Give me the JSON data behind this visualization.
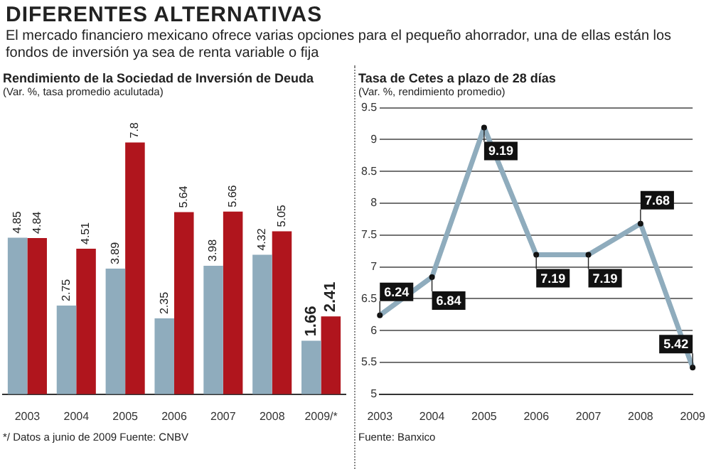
{
  "chart_data": [
    {
      "type": "other",
      "title": "DIFERENTES ALTERNATIVAS",
      "subtitle": "El mercado financiero mexicano ofrece varias opciones para el pequeño ahorrador, una de ellas están los fondos de inversión ya sea de renta variable o fija"
    },
    {
      "type": "bar",
      "title": "Rendimiento de la Sociedad de Inversión de Deuda",
      "subtitle": "(Var. %, tasa promedio aculutada)",
      "categories": [
        "2003",
        "2004",
        "2005",
        "2006",
        "2007",
        "2008",
        "2009/*"
      ],
      "series": [
        {
          "color": "#8facbd",
          "values": [
            4.85,
            2.75,
            3.89,
            2.35,
            3.98,
            4.32,
            1.66
          ]
        },
        {
          "color": "#b0151d",
          "values": [
            4.84,
            4.51,
            7.8,
            5.64,
            5.66,
            5.05,
            2.41
          ]
        }
      ],
      "data_labels": true,
      "annotations": [
        "*/ Datos a junio de 2009  Fuente: CNBV"
      ]
    },
    {
      "type": "line",
      "title": "Tasa de Cetes a plazo de 28 días",
      "subtitle": "(Var. %, rendimiento promedio)",
      "categories": [
        "2003",
        "2004",
        "2005",
        "2006",
        "2007",
        "2008",
        "2009"
      ],
      "series": [
        {
          "color": "#8facbd",
          "values": [
            6.24,
            6.84,
            9.19,
            7.19,
            7.19,
            7.68,
            5.42
          ]
        }
      ],
      "ylim": [
        5,
        9.5
      ],
      "yticks": [
        5,
        5.5,
        6,
        6.5,
        7,
        7.5,
        8,
        8.5,
        9,
        9.5
      ],
      "grid": "y",
      "marker": "circle",
      "data_labels": true,
      "annotations": [
        "Fuente: Banxico"
      ]
    }
  ]
}
